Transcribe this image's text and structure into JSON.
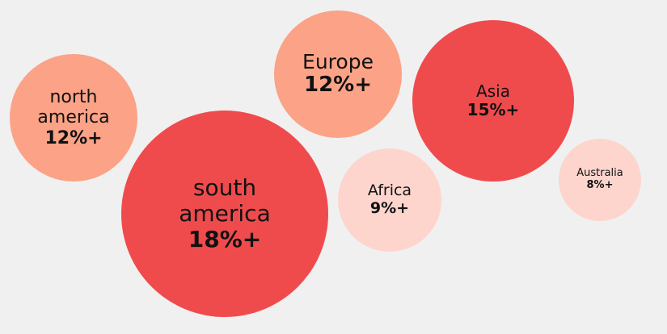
{
  "chart_data": {
    "type": "bubble",
    "title": "",
    "series": [
      {
        "label": "north america",
        "value_label": "12%+",
        "value": 12,
        "color": "#fba287"
      },
      {
        "label": "Europe",
        "value_label": "12%+",
        "value": 12,
        "color": "#fba287"
      },
      {
        "label": "Asia",
        "value_label": "15%+",
        "value": 15,
        "color": "#ef4b4d"
      },
      {
        "label": "south america",
        "value_label": "18%+",
        "value": 18,
        "color": "#ef4b4d"
      },
      {
        "label": "Africa",
        "value_label": "9%+",
        "value": 9,
        "color": "#fdd5cd"
      },
      {
        "label": "Australia",
        "value_label": "8%+",
        "value": 8,
        "color": "#fdd5cd"
      }
    ]
  },
  "colors": {
    "background": "#f0f0f0",
    "text": "#111111"
  }
}
